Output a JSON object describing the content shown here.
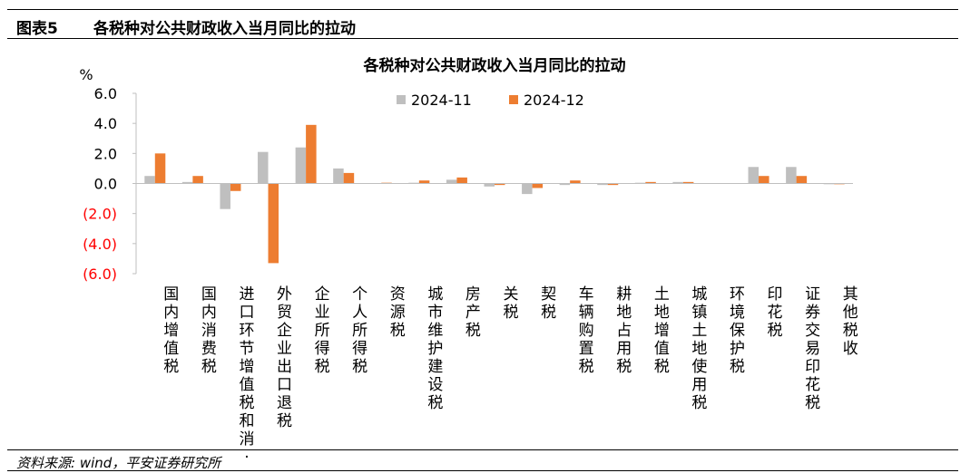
{
  "header": {
    "figure_label": "图表5",
    "figure_title": "各税种对公共财政收入当月同比的拉动"
  },
  "footer": {
    "source": "资料来源: wind，平安证券研究所"
  },
  "chart_data": {
    "type": "bar",
    "title": "各税种对公共财政收入当月同比的拉动",
    "ylabel": "%",
    "ylim": [
      -6.0,
      6.0
    ],
    "yticks": [
      {
        "value": 6.0,
        "label": "6.0"
      },
      {
        "value": 4.0,
        "label": "4.0"
      },
      {
        "value": 2.0,
        "label": "2.0"
      },
      {
        "value": 0.0,
        "label": "0.0"
      },
      {
        "value": -2.0,
        "label": "(2.0)"
      },
      {
        "value": -4.0,
        "label": "(4.0)"
      },
      {
        "value": -6.0,
        "label": "(6.0)"
      }
    ],
    "negative_tick_color": "#ff0000",
    "legend_position": "top-center",
    "grid": false,
    "categories": [
      "国内增值税",
      "国内消费税",
      "进口环节增值税和消·",
      "外贸企业出口退税",
      "企业所得税",
      "个人所得税",
      "资源税",
      "城市维护建设税",
      "房产税",
      "关税",
      "契税",
      "车辆购置税",
      "耕地占用税",
      "土地增值税",
      "城镇土地使用税",
      "环境保护税",
      "印花税",
      "证券交易印花税",
      "其他税收"
    ],
    "series": [
      {
        "name": "2024-11",
        "color": "#bfbfbf",
        "values": [
          0.5,
          0.1,
          -1.7,
          2.1,
          2.4,
          1.0,
          0.02,
          0.05,
          0.25,
          -0.2,
          -0.7,
          -0.1,
          -0.1,
          0.05,
          0.1,
          0.02,
          1.1,
          1.1,
          -0.05
        ]
      },
      {
        "name": "2024-12",
        "color": "#ed7d31",
        "values": [
          2.0,
          0.5,
          -0.5,
          -5.3,
          3.9,
          0.7,
          0.05,
          0.2,
          0.4,
          -0.1,
          -0.3,
          0.2,
          -0.1,
          0.1,
          0.1,
          0.02,
          0.5,
          0.5,
          -0.05
        ]
      }
    ]
  }
}
